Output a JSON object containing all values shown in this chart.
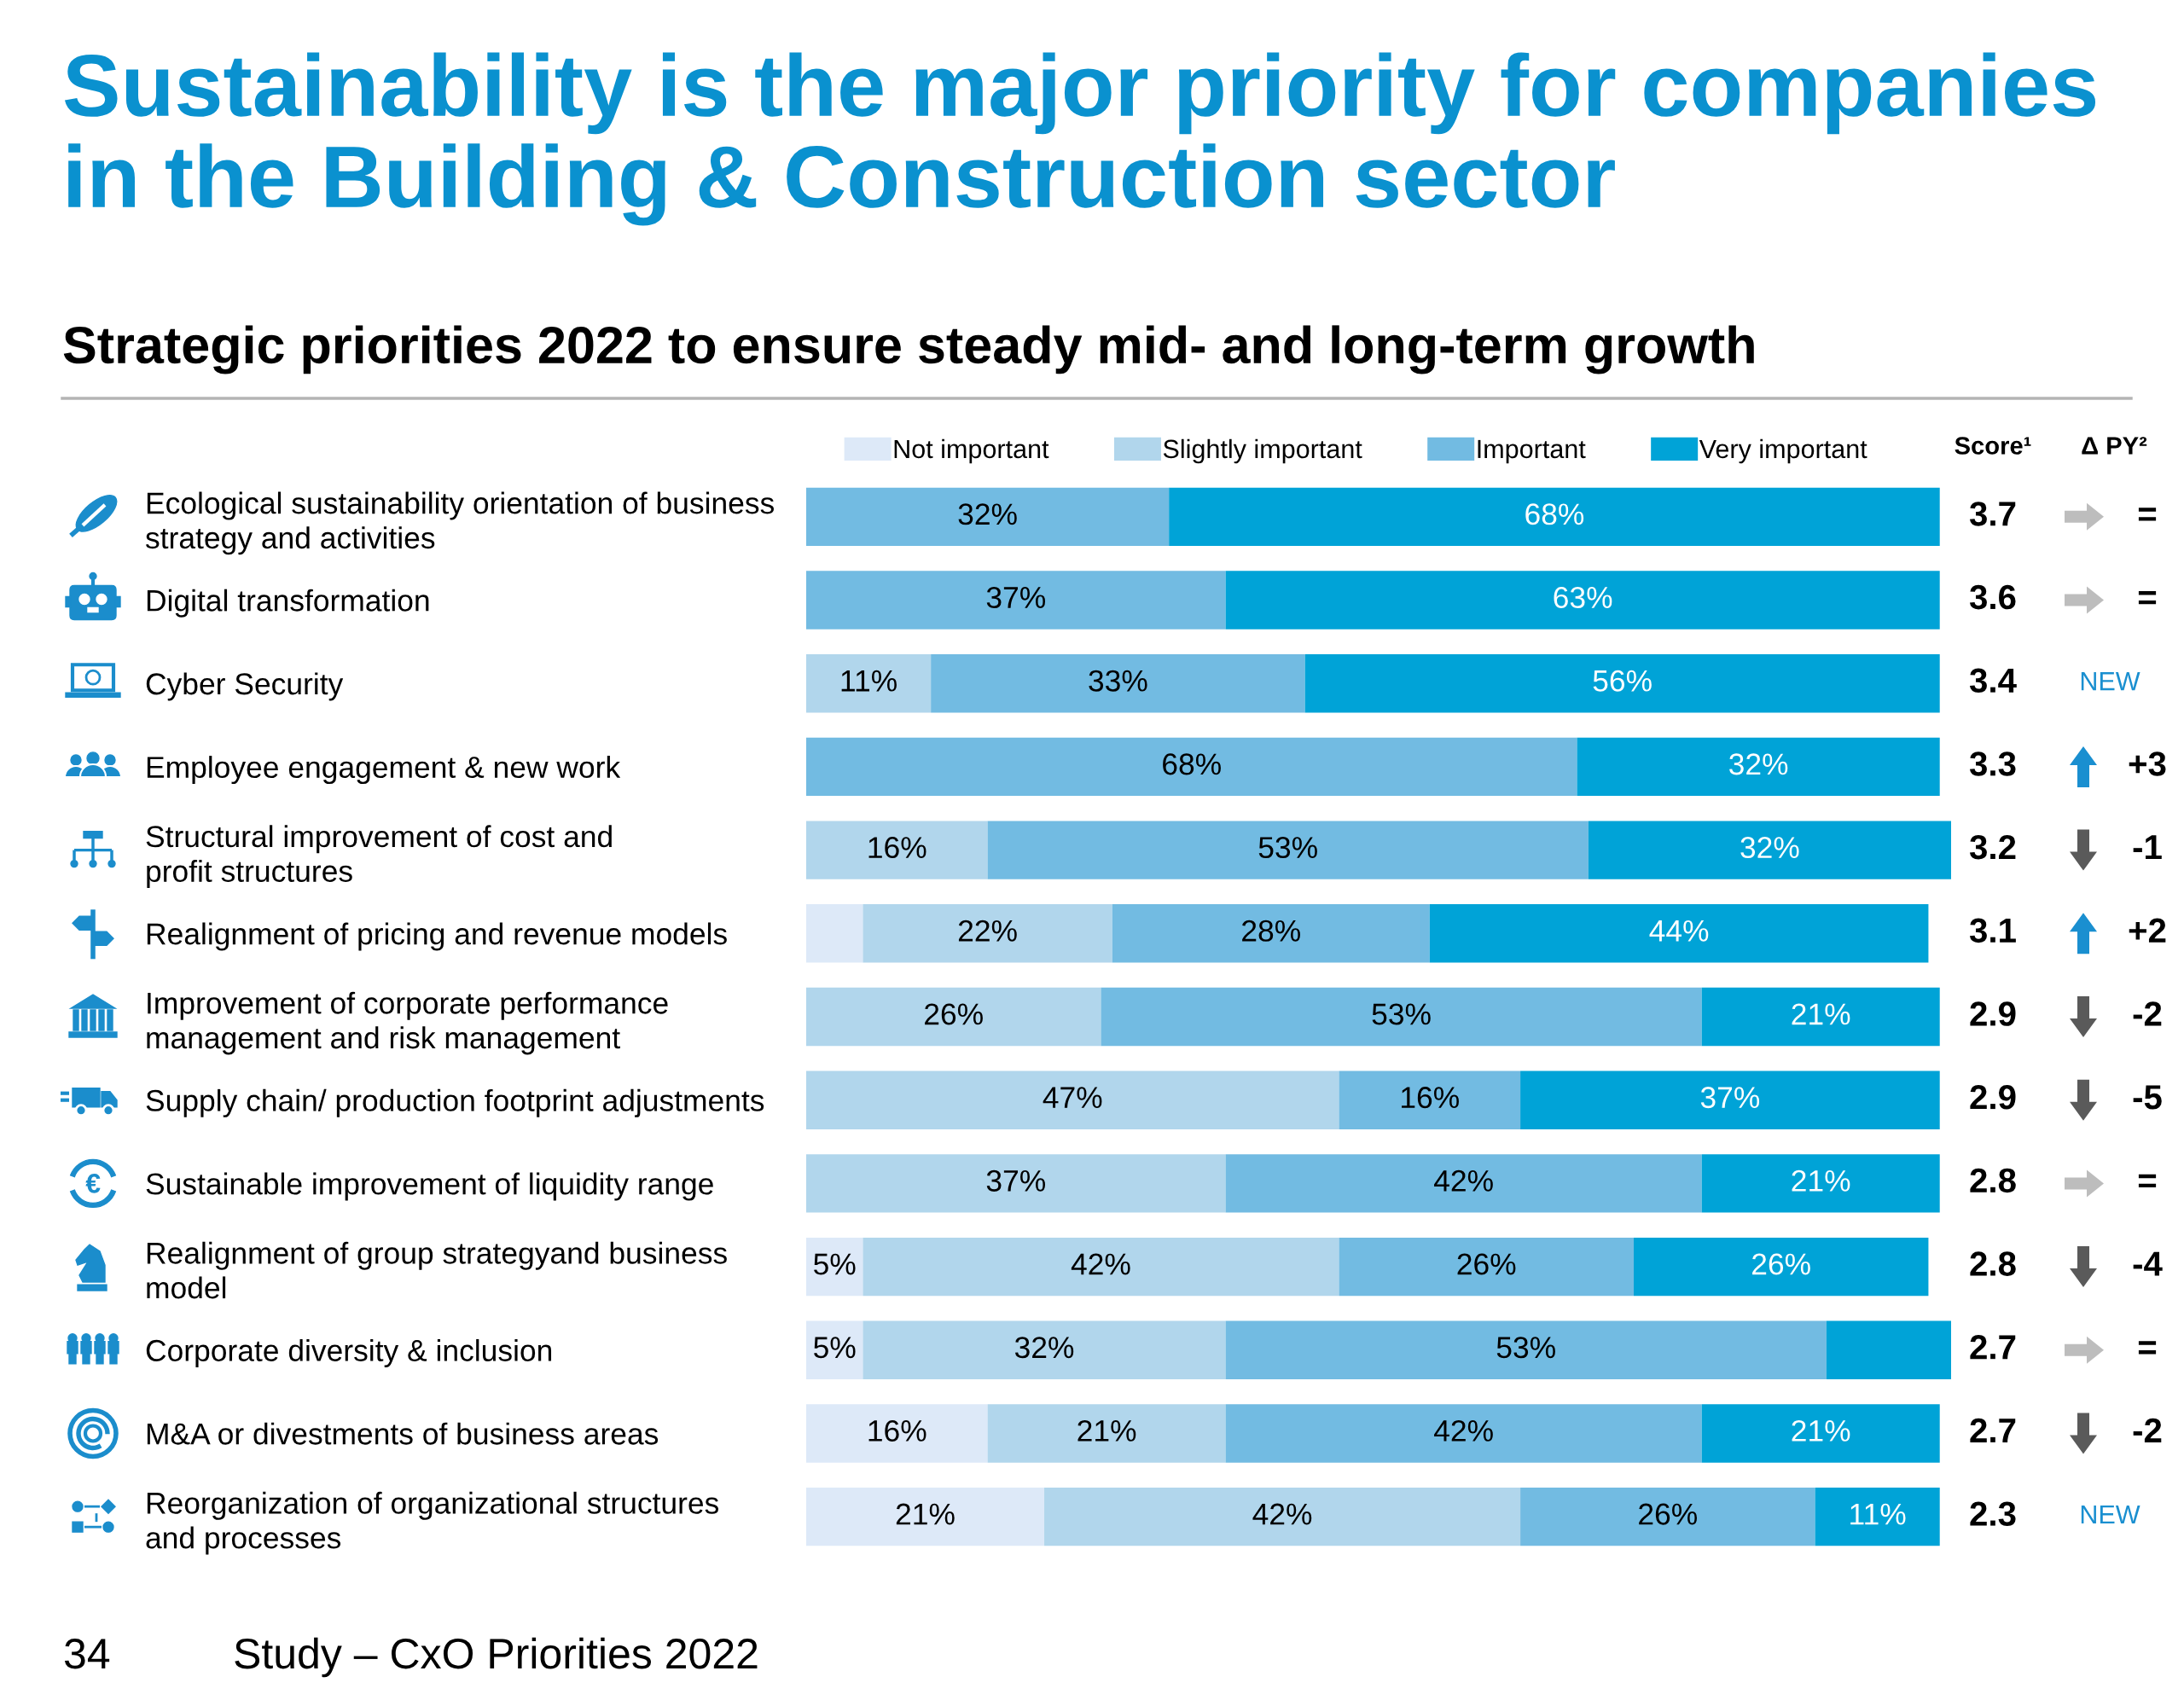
{
  "chart_data": {
    "type": "bar",
    "orientation": "horizontal",
    "stacked": true,
    "title": "Sustainability is the major priority for companies\nin the Building & Construction sector",
    "subtitle": "Strategic priorities 2022 to ensure steady mid- and long-term growth",
    "categories": [
      "Ecological sustainability orientation of business\nstrategy and activities",
      "Digital transformation",
      "Cyber Security",
      "Employee engagement & new work",
      "Structural improvement of cost and\nprofit structures",
      "Realignment of pricing and revenue models",
      "Improvement of corporate performance\nmanagement and risk management",
      "Supply chain/ production footprint adjustments",
      "Sustainable improvement of liquidity range",
      "Realignment of group strategyand business\nmodel",
      "Corporate diversity & inclusion",
      "M&A or divestments of business areas",
      "Reorganization of organizational structures\nand processes"
    ],
    "series": [
      {
        "name": "Not important",
        "color": "#dde9f8",
        "values": [
          null,
          null,
          null,
          null,
          null,
          5,
          null,
          null,
          null,
          5,
          5,
          16,
          21
        ],
        "value_labels": [
          null,
          null,
          null,
          null,
          null,
          null,
          null,
          null,
          null,
          "5%",
          "5%",
          "16%",
          "21%"
        ]
      },
      {
        "name": "Slightly important",
        "color": "#b1d6ec",
        "values": [
          null,
          null,
          11,
          null,
          16,
          22,
          26,
          47,
          37,
          42,
          32,
          21,
          42
        ],
        "value_labels": [
          null,
          null,
          "11%",
          null,
          "16%",
          "22%",
          "26%",
          "47%",
          "37%",
          "42%",
          "32%",
          "21%",
          "42%"
        ]
      },
      {
        "name": "Important",
        "color": "#72bbe2",
        "values": [
          32,
          37,
          33,
          68,
          53,
          28,
          53,
          16,
          42,
          26,
          53,
          42,
          26
        ],
        "value_labels": [
          "32%",
          "37%",
          "33%",
          "68%",
          "53%",
          "28%",
          "53%",
          "16%",
          "42%",
          "26%",
          "53%",
          "42%",
          "26%"
        ]
      },
      {
        "name": "Very important",
        "color": "#00a3d7",
        "values": [
          68,
          63,
          56,
          32,
          32,
          44,
          21,
          37,
          21,
          26,
          11,
          21,
          11
        ],
        "value_labels": [
          "68%",
          "63%",
          "56%",
          "32%",
          "32%",
          "44%",
          "21%",
          "37%",
          "21%",
          "26%",
          null,
          "21%",
          "11%"
        ]
      }
    ],
    "legend": "top",
    "tick_labels": "y",
    "annotations": [
      "Score¹",
      "Δ PY²",
      "3.7",
      "=",
      "3.6",
      "=",
      "3.4",
      "NEW",
      "3.3",
      "+3",
      "3.2",
      "-1",
      "3.1",
      "+2",
      "2.9",
      "-2",
      "2.9",
      "-5",
      "2.8",
      "=",
      "2.8",
      "-4",
      "2.7",
      "=",
      "2.7",
      "-2",
      "2.3",
      "NEW",
      "34",
      "Study – CxO Priorities 2022"
    ]
  }
}
